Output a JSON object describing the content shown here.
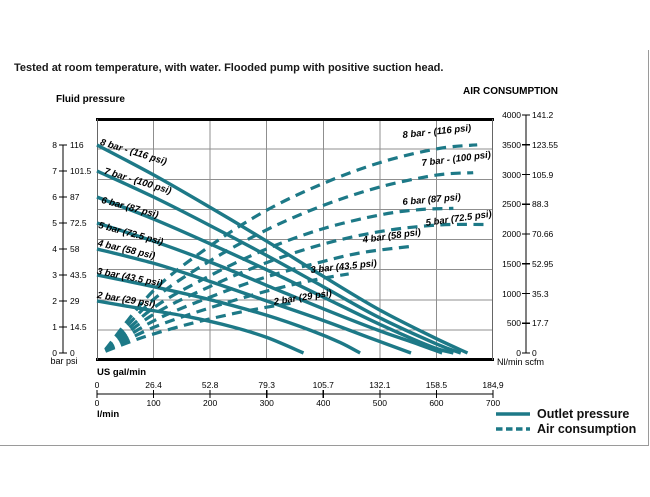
{
  "page": {
    "title": "Tested at room temperature, with water. Flooded pump with positive suction head."
  },
  "chart": {
    "colors": {
      "curve": "#1d7987",
      "grid": "#8f8f8f",
      "plot_border": "#000000",
      "side_border": "#666666",
      "frame": "#9a9a9a"
    },
    "left_axis": {
      "title": "Fluid pressure",
      "unit_label": "bar psi",
      "bar_ticks": [
        "0",
        "1",
        "2",
        "3",
        "4",
        "5",
        "6",
        "7",
        "8"
      ],
      "psi_ticks": [
        "0",
        "14.5",
        "29",
        "43.5",
        "58",
        "72.5",
        "87",
        "101.5",
        "116"
      ],
      "range_bar": [
        0,
        8
      ]
    },
    "right_axis": {
      "title": "AIR CONSUMPTION",
      "unit_label": "Nl/min scfm",
      "nl_ticks": [
        "0",
        "500",
        "1000",
        "1500",
        "2000",
        "2500",
        "3000",
        "3500",
        "4000"
      ],
      "scfm_ticks": [
        "0",
        "17.7",
        "35.3",
        "52.95",
        "70.66",
        "88.3",
        "105.9",
        "123.55",
        "141.2"
      ],
      "range_nl": [
        0,
        4000
      ]
    },
    "bottom_axis": {
      "gal_label": "US gal/min",
      "gal_ticks": [
        "0",
        "26.4",
        "52.8",
        "79.3",
        "105.7",
        "132.1",
        "158.5",
        "184,9"
      ],
      "lmin_label": "l/min",
      "lmin_ticks": [
        "0",
        "100",
        "200",
        "300",
        "400",
        "500",
        "600",
        "700"
      ],
      "range_lmin": [
        0,
        700
      ]
    },
    "legend": [
      {
        "label": "Outlet pressure",
        "style": "solid"
      },
      {
        "label": "Air consumption",
        "style": "dashed"
      }
    ]
  },
  "chart_data": {
    "type": "line",
    "x_unit": "l/min",
    "x_range": [
      0,
      700
    ],
    "grid": true,
    "legend_position": "bottom-right",
    "series": [
      {
        "group": "outlet_pressure",
        "style": "solid",
        "y_unit": "bar",
        "pressure_bar": 8,
        "label": "8 bar - (116 psi)",
        "label_at": [
          9,
          7.85
        ],
        "label_rot": 17,
        "points": [
          [
            0,
            8
          ],
          [
            100,
            6.85
          ],
          [
            200,
            5.6
          ],
          [
            300,
            4.3
          ],
          [
            400,
            2.95
          ],
          [
            500,
            1.65
          ],
          [
            600,
            0.55
          ],
          [
            655,
            0
          ]
        ]
      },
      {
        "group": "outlet_pressure",
        "style": "solid",
        "y_unit": "bar",
        "pressure_bar": 7,
        "label": "7 bar - (100 psi)",
        "label_at": [
          16,
          6.72
        ],
        "label_rot": 17,
        "points": [
          [
            0,
            7
          ],
          [
            100,
            6.0
          ],
          [
            200,
            4.9
          ],
          [
            300,
            3.75
          ],
          [
            400,
            2.55
          ],
          [
            500,
            1.35
          ],
          [
            600,
            0.35
          ],
          [
            643,
            0
          ]
        ]
      },
      {
        "group": "outlet_pressure",
        "style": "solid",
        "y_unit": "bar",
        "pressure_bar": 6,
        "label": "6 bar (87 psi)",
        "label_at": [
          11,
          5.62
        ],
        "label_rot": 15,
        "points": [
          [
            0,
            6
          ],
          [
            100,
            5.15
          ],
          [
            200,
            4.2
          ],
          [
            300,
            3.2
          ],
          [
            400,
            2.15
          ],
          [
            500,
            1.1
          ],
          [
            590,
            0.25
          ],
          [
            630,
            0
          ]
        ]
      },
      {
        "group": "outlet_pressure",
        "style": "solid",
        "y_unit": "bar",
        "pressure_bar": 5,
        "label": "5 bar (72.5 psi)",
        "label_at": [
          5,
          4.65
        ],
        "label_rot": 15,
        "points": [
          [
            0,
            5
          ],
          [
            100,
            4.3
          ],
          [
            200,
            3.5
          ],
          [
            300,
            2.6
          ],
          [
            400,
            1.7
          ],
          [
            500,
            0.85
          ],
          [
            560,
            0.4
          ],
          [
            610,
            0
          ]
        ]
      },
      {
        "group": "outlet_pressure",
        "style": "solid",
        "y_unit": "bar",
        "pressure_bar": 4,
        "label": "4 bar (58 psi)",
        "label_at": [
          3,
          3.95
        ],
        "label_rot": 13,
        "points": [
          [
            0,
            4
          ],
          [
            100,
            3.45
          ],
          [
            200,
            2.75
          ],
          [
            300,
            2.0
          ],
          [
            400,
            1.25
          ],
          [
            480,
            0.6
          ],
          [
            555,
            0
          ]
        ]
      },
      {
        "group": "outlet_pressure",
        "style": "solid",
        "y_unit": "bar",
        "pressure_bar": 3,
        "label": "3 bar (43.5 psi)",
        "label_at": [
          1,
          2.9
        ],
        "label_rot": 11,
        "points": [
          [
            0,
            3
          ],
          [
            100,
            2.55
          ],
          [
            200,
            2.05
          ],
          [
            300,
            1.45
          ],
          [
            380,
            0.85
          ],
          [
            430,
            0.4
          ],
          [
            465,
            0
          ]
        ]
      },
      {
        "group": "outlet_pressure",
        "style": "solid",
        "y_unit": "bar",
        "pressure_bar": 2,
        "label": "2 bar (29 psi)",
        "label_at": [
          1,
          1.95
        ],
        "label_rot": 9,
        "points": [
          [
            0,
            2
          ],
          [
            80,
            1.7
          ],
          [
            160,
            1.4
          ],
          [
            240,
            1.0
          ],
          [
            300,
            0.6
          ],
          [
            365,
            0
          ]
        ]
      },
      {
        "group": "air_consumption",
        "style": "dashed",
        "y_unit": "Nl/min",
        "pressure_bar": 8,
        "label": "8 bar - (116 psi)",
        "label_at": [
          540,
          3550
        ],
        "label_rot": -6,
        "points": [
          [
            15,
            60
          ],
          [
            100,
            1050
          ],
          [
            200,
            1800
          ],
          [
            300,
            2400
          ],
          [
            400,
            2850
          ],
          [
            500,
            3200
          ],
          [
            600,
            3430
          ],
          [
            672,
            3500
          ]
        ]
      },
      {
        "group": "air_consumption",
        "style": "dashed",
        "y_unit": "Nl/min",
        "pressure_bar": 7,
        "label": "7 bar - (100 psi)",
        "label_at": [
          572,
          3075
        ],
        "label_rot": -7,
        "points": [
          [
            15,
            55
          ],
          [
            100,
            900
          ],
          [
            200,
            1550
          ],
          [
            300,
            2070
          ],
          [
            400,
            2480
          ],
          [
            500,
            2790
          ],
          [
            600,
            2990
          ],
          [
            665,
            3030
          ]
        ]
      },
      {
        "group": "air_consumption",
        "style": "dashed",
        "y_unit": "Nl/min",
        "pressure_bar": 6,
        "label": "6 bar (87 psi)",
        "label_at": [
          539,
          2420
        ],
        "label_rot": -5,
        "points": [
          [
            15,
            50
          ],
          [
            100,
            760
          ],
          [
            200,
            1300
          ],
          [
            300,
            1750
          ],
          [
            400,
            2090
          ],
          [
            500,
            2320
          ],
          [
            570,
            2410
          ],
          [
            630,
            2430
          ]
        ]
      },
      {
        "group": "air_consumption",
        "style": "dashed",
        "y_unit": "Nl/min",
        "pressure_bar": 5,
        "label": "5 bar (72.5 psi)",
        "label_at": [
          580,
          2065
        ],
        "label_rot": -8,
        "points": [
          [
            15,
            45
          ],
          [
            100,
            650
          ],
          [
            200,
            1120
          ],
          [
            300,
            1520
          ],
          [
            400,
            1830
          ],
          [
            500,
            2040
          ],
          [
            600,
            2150
          ],
          [
            688,
            2160
          ]
        ]
      },
      {
        "group": "air_consumption",
        "style": "dashed",
        "y_unit": "Nl/min",
        "pressure_bar": 4,
        "label": "4 bar (58 psi)",
        "label_at": [
          468,
          1780
        ],
        "label_rot": -8,
        "points": [
          [
            15,
            40
          ],
          [
            100,
            540
          ],
          [
            200,
            940
          ],
          [
            300,
            1280
          ],
          [
            400,
            1540
          ],
          [
            470,
            1690
          ],
          [
            553,
            1790
          ]
        ]
      },
      {
        "group": "air_consumption",
        "style": "dashed",
        "y_unit": "Nl/min",
        "pressure_bar": 3,
        "label": "3 bar (43.5 psi)",
        "label_at": [
          376,
          1280
        ],
        "label_rot": -6,
        "points": [
          [
            15,
            35
          ],
          [
            100,
            430
          ],
          [
            200,
            760
          ],
          [
            300,
            1040
          ],
          [
            380,
            1220
          ],
          [
            445,
            1330
          ]
        ]
      },
      {
        "group": "air_consumption",
        "style": "dashed",
        "y_unit": "Nl/min",
        "pressure_bar": 2,
        "label": "2 bar (29 psi)",
        "label_at": [
          311,
          740
        ],
        "label_rot": -9,
        "points": [
          [
            15,
            30
          ],
          [
            80,
            260
          ],
          [
            160,
            480
          ],
          [
            240,
            660
          ],
          [
            300,
            770
          ],
          [
            352,
            850
          ]
        ]
      }
    ]
  }
}
